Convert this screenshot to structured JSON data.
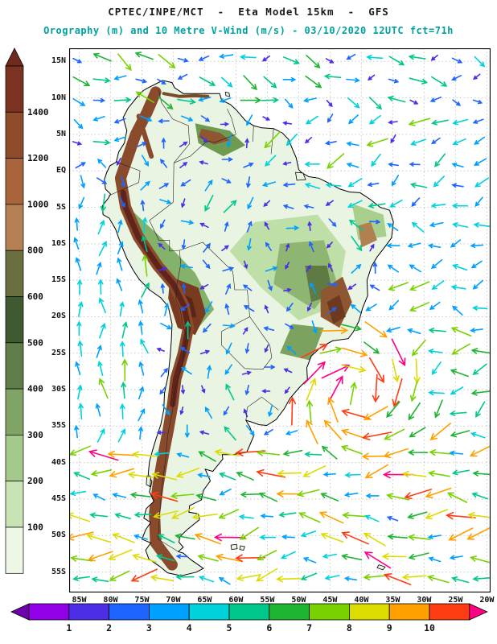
{
  "header": {
    "title_line1": "CPTEC/INPE/MCT  -  Eta Model 15km  -  GFS",
    "title_line2": "Orography (m) and 10 Metre V-Wind (m/s) - 03/10/2020 12UTC fct=71h"
  },
  "colors": {
    "title1": "#1a1a1a",
    "title2": "#00a0a0",
    "grid": "#c8c8c8",
    "frame": "#000000",
    "ocean": "#ffffff",
    "land_base": "#e9f5e2",
    "coastline": "#000000",
    "borders": "#222222"
  },
  "map": {
    "lat_labels": [
      "15N",
      "10N",
      "5N",
      "EQ",
      "5S",
      "10S",
      "15S",
      "20S",
      "25S",
      "30S",
      "35S",
      "40S",
      "45S",
      "50S",
      "55S"
    ],
    "lon_labels": [
      "85W",
      "80W",
      "75W",
      "70W",
      "65W",
      "60W",
      "55W",
      "50W",
      "45W",
      "40W",
      "35W",
      "30W",
      "25W",
      "20W"
    ]
  },
  "elevation_scale": {
    "labels_top_to_bottom": [
      "1400",
      "1200",
      "1000",
      "800",
      "600",
      "500",
      "400",
      "300",
      "200",
      "100"
    ],
    "arrow_color": "#6f2b1d",
    "segment_colors_top_to_bottom": [
      "#7c3220",
      "#8f4c2a",
      "#a9643c",
      "#b58054",
      "#6b6f3f",
      "#3f5a30",
      "#5f7d49",
      "#7fa465",
      "#a3c98b",
      "#c9e4b4",
      "#eef7e6"
    ]
  },
  "wind_scale": {
    "labels": [
      "1",
      "2",
      "3",
      "4",
      "5",
      "6",
      "7",
      "8",
      "9",
      "10"
    ],
    "left_arrow_color": "#6d00ab",
    "segment_colors": [
      "#9100e6",
      "#4b2ee6",
      "#1e64ff",
      "#00a0ff",
      "#00d2dc",
      "#00c88c",
      "#1eb432",
      "#78d200",
      "#dcdc00",
      "#ffa000",
      "#ff3c14"
    ],
    "right_arrow_color": "#ff0082"
  }
}
